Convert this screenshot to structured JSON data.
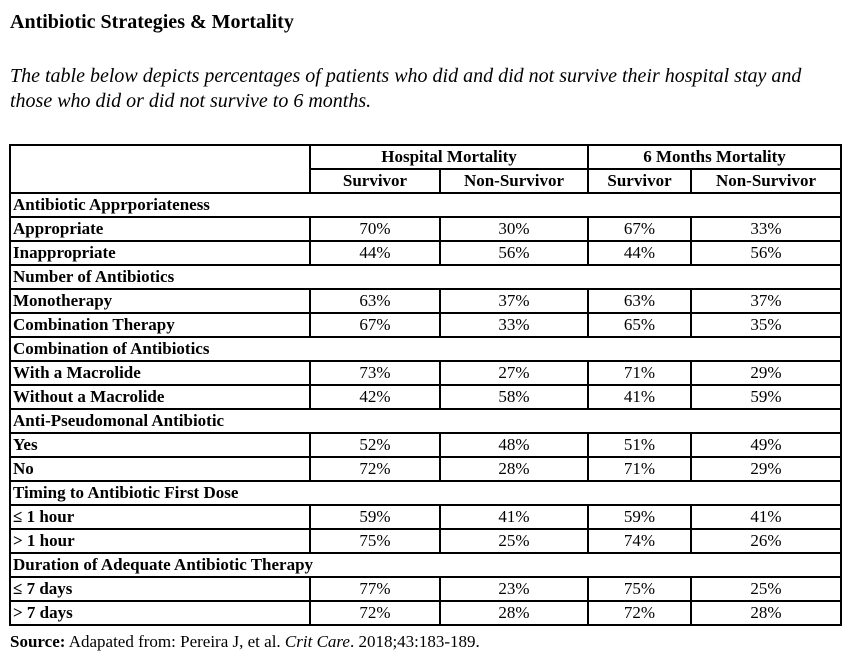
{
  "page": {
    "title": "Antibiotic Strategies & Mortality",
    "subtitle": "The table below depicts percentages of patients who did and did not survive their hospital stay and those who did or did not survive to 6 months."
  },
  "colors": {
    "text": "#000000",
    "border": "#000000",
    "background": "#ffffff"
  },
  "table": {
    "col_groups": [
      {
        "label": "Hospital Mortality"
      },
      {
        "label": "6 Months Mortality"
      }
    ],
    "sub_headers": [
      "Survivor",
      "Non-Survivor",
      "Survivor",
      "Non-Survivor"
    ],
    "sections": [
      {
        "header": "Antibiotic Apprporiateness",
        "rows": [
          {
            "label": "Appropriate",
            "values": [
              "70%",
              "30%",
              "67%",
              "33%"
            ]
          },
          {
            "label": "Inappropriate",
            "values": [
              "44%",
              "56%",
              "44%",
              "56%"
            ]
          }
        ]
      },
      {
        "header": "Number of Antibiotics",
        "rows": [
          {
            "label": "Monotherapy",
            "values": [
              "63%",
              "37%",
              "63%",
              "37%"
            ]
          },
          {
            "label": "Combination Therapy",
            "values": [
              "67%",
              "33%",
              "65%",
              "35%"
            ]
          }
        ]
      },
      {
        "header": "Combination of Antibiotics",
        "rows": [
          {
            "label": "With a Macrolide",
            "values": [
              "73%",
              "27%",
              "71%",
              "29%"
            ]
          },
          {
            "label": "Without a Macrolide",
            "values": [
              "42%",
              "58%",
              "41%",
              "59%"
            ]
          }
        ]
      },
      {
        "header": "Anti-Pseudomonal Antibiotic",
        "rows": [
          {
            "label": "Yes",
            "values": [
              "52%",
              "48%",
              "51%",
              "49%"
            ]
          },
          {
            "label": "No",
            "values": [
              "72%",
              "28%",
              "71%",
              "29%"
            ]
          }
        ]
      },
      {
        "header": "Timing to Antibiotic First Dose",
        "rows": [
          {
            "label": "≤ 1 hour",
            "values": [
              "59%",
              "41%",
              "59%",
              "41%"
            ]
          },
          {
            "label": "> 1 hour",
            "values": [
              "75%",
              "25%",
              "74%",
              "26%"
            ]
          }
        ]
      },
      {
        "header": "Duration of Adequate Antibiotic Therapy",
        "rows": [
          {
            "label": "≤ 7 days",
            "values": [
              "77%",
              "23%",
              "75%",
              "25%"
            ]
          },
          {
            "label": "> 7 days",
            "values": [
              "72%",
              "28%",
              "72%",
              "28%"
            ]
          }
        ]
      }
    ]
  },
  "source": {
    "label": "Source:",
    "text": " Adapated from: Pereira J, et al. ",
    "journal": "Crit Care",
    "suffix": ". 2018;43:183-189."
  }
}
